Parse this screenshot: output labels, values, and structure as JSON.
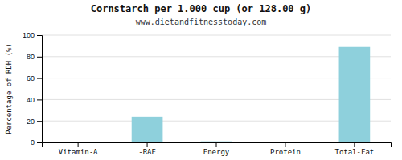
{
  "chart_data": {
    "type": "bar",
    "title": "Cornstarch per 1.000 cup (or 128.00 g)",
    "subtitle": "www.dietandfitnesstoday.com",
    "ylabel": "Percentage of RDH (%)",
    "categories": [
      "Vitamin-A",
      "-RAE",
      "Energy",
      "Protein",
      "Total-Fat"
    ],
    "values": [
      0.0,
      24.0,
      1.0,
      0.0,
      89.0
    ],
    "color": "#8ed0dc",
    "ylim": [
      0,
      100
    ],
    "yticks": [
      0,
      20,
      40,
      60,
      80,
      100
    ],
    "grid": true
  }
}
